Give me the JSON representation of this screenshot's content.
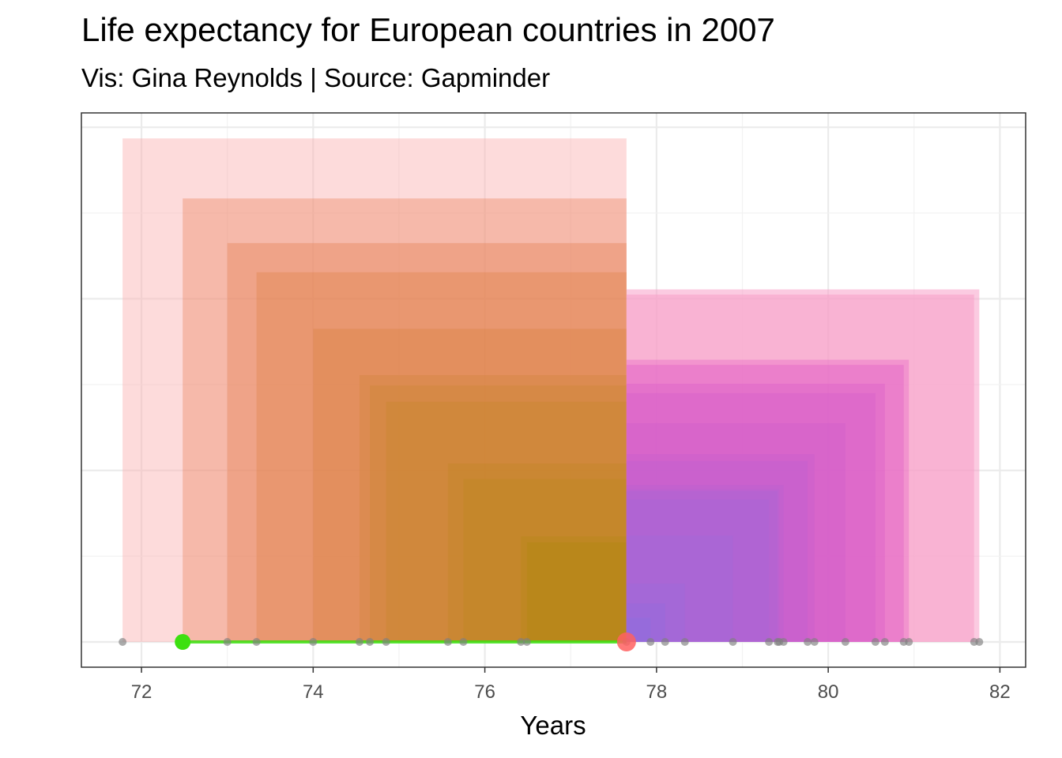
{
  "title": "Life expectancy for European countries in 2007",
  "subtitle": "Vis: Gina Reynolds | Source: Gapminder",
  "colors": {
    "below_mean": "#F08060",
    "above_mean": "#F050C0",
    "band_low": "#FAB0B0",
    "band_high": "#F8A0C8",
    "olive": "#B08A10",
    "purple": "#8A70E0",
    "highlight_point": "#3DE010",
    "mean_point": "#FF6060",
    "point": "#7F7F7F"
  },
  "chart_data": {
    "type": "scatter",
    "xlabel": "Years",
    "ylabel": "",
    "xlim": [
      71.3,
      82.3
    ],
    "x_ticks": [
      72,
      74,
      76,
      78,
      80,
      82
    ],
    "mean_life_exp": 77.65,
    "highlight_life_exp": 72.48,
    "points": [
      71.78,
      72.48,
      73.0,
      73.34,
      74.0,
      74.54,
      74.66,
      74.85,
      75.57,
      75.75,
      76.42,
      76.49,
      77.65,
      77.93,
      78.1,
      78.33,
      78.89,
      79.31,
      79.41,
      79.43,
      79.48,
      79.76,
      79.84,
      80.2,
      80.55,
      80.66,
      80.88,
      80.94,
      81.7,
      81.76
    ],
    "deviation_squares_below_mean": [
      71.78,
      72.48,
      73.0,
      73.34,
      74.0,
      74.54,
      74.66,
      74.85,
      75.57,
      75.75,
      76.42,
      76.49
    ],
    "deviation_squares_above_mean": [
      77.93,
      78.1,
      78.33,
      78.89,
      79.31,
      79.41,
      79.43,
      79.48,
      79.76,
      79.84,
      80.2,
      80.55,
      80.66,
      80.88,
      80.94,
      81.7,
      81.76
    ],
    "grid": true,
    "legend": "none"
  }
}
